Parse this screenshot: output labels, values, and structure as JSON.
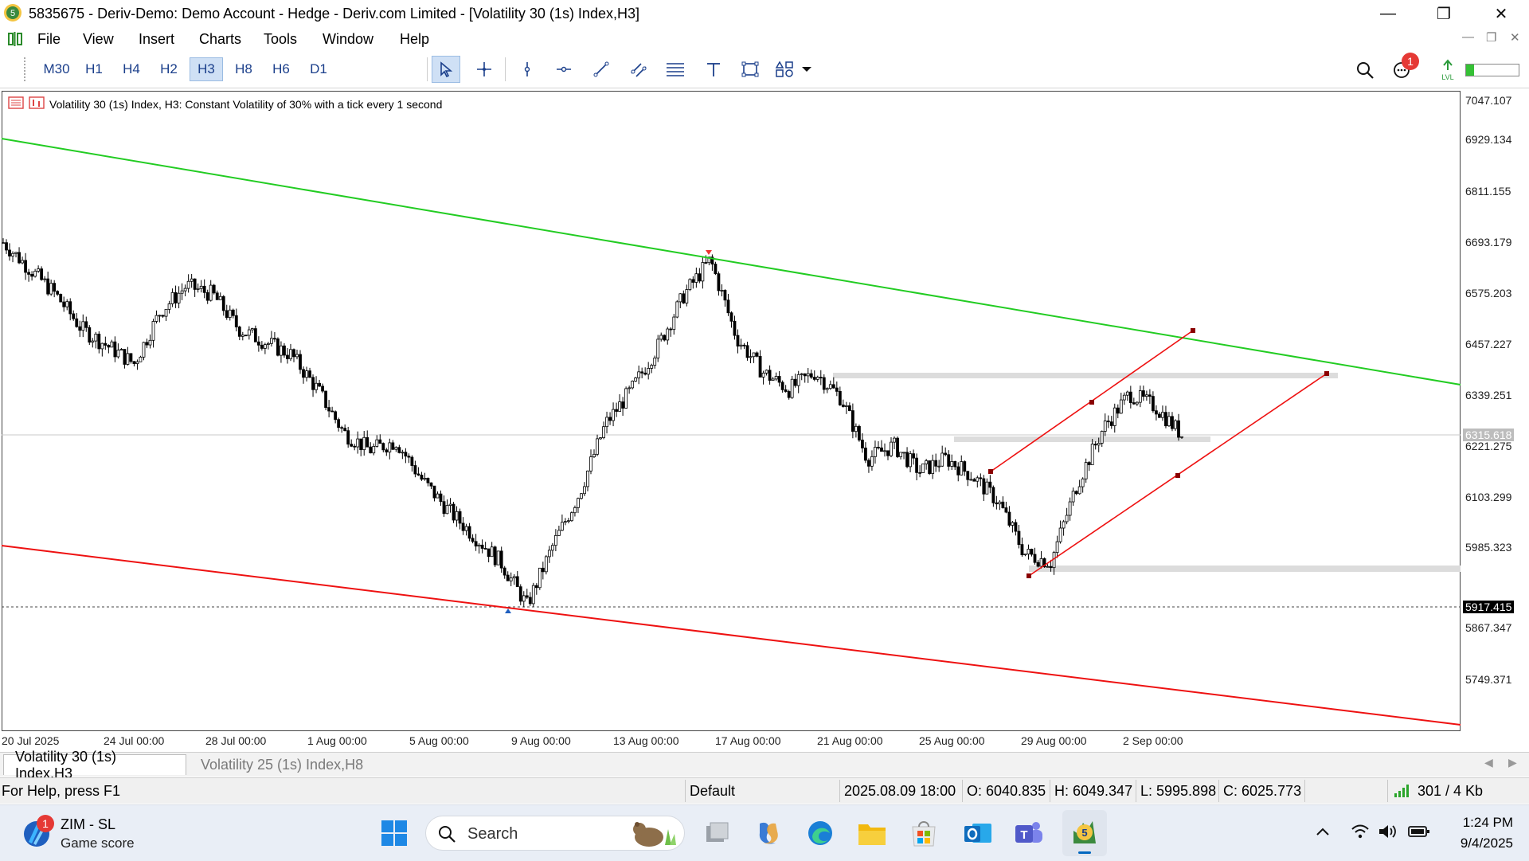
{
  "window": {
    "title": "5835675 - Deriv-Demo: Demo Account - Hedge - Deriv.com Limited - [Volatility 30 (1s) Index,H3]",
    "app_icon": "mt5-icon"
  },
  "menu": {
    "items": [
      "File",
      "View",
      "Insert",
      "Charts",
      "Tools",
      "Window",
      "Help"
    ]
  },
  "toolbar": {
    "timeframes": [
      "M30",
      "H1",
      "H4",
      "H2",
      "H3",
      "H8",
      "H6",
      "D1"
    ],
    "active_timeframe": "H3",
    "tools": [
      "cursor-icon",
      "crosshair-icon",
      "vertical-line-icon",
      "horizontal-line-icon",
      "trend-line-icon",
      "channel-icon",
      "fibonacci-icon",
      "text-icon",
      "shapes-icon",
      "objects-icon"
    ],
    "notification_count": "1"
  },
  "chart": {
    "info": "Volatility 30 (1s) Index, H3:  Constant Volatility of 30% with a tick every 1 second",
    "price_levels": [
      "7047.107",
      "6929.134",
      "6811.155",
      "6693.179",
      "6575.203",
      "6457.227",
      "6339.251",
      "6221.275",
      "6103.299",
      "5985.323",
      "5867.347",
      "5749.371"
    ],
    "current_price": "6315.618",
    "marker_price": "5917.415",
    "dates": [
      "20 Jul 2025",
      "24 Jul 00:00",
      "28 Jul 00:00",
      "1 Aug 00:00",
      "5 Aug 00:00",
      "9 Aug 00:00",
      "13 Aug 00:00",
      "17 Aug 00:00",
      "21 Aug 00:00",
      "25 Aug 00:00",
      "29 Aug 00:00",
      "2 Sep 00:00"
    ],
    "colors": {
      "bull": "#000000",
      "green_line": "#22cc22",
      "red_line": "#ee1111",
      "zone": "#dcdcdc"
    }
  },
  "chart_data": {
    "type": "candlestick",
    "x": [
      "20 Jul 2025",
      "24 Jul 00:00",
      "28 Jul 00:00",
      "1 Aug 00:00",
      "5 Aug 00:00",
      "9 Aug 00:00",
      "13 Aug 00:00",
      "17 Aug 00:00",
      "21 Aug 00:00",
      "25 Aug 00:00",
      "29 Aug 00:00",
      "2 Sep 00:00"
    ],
    "close_path": [
      [
        "20 Jul 2025",
        6760
      ],
      [
        "21 Jul",
        6700
      ],
      [
        "22 Jul",
        6640
      ],
      [
        "23 Jul",
        6560
      ],
      [
        "24 Jul 00:00",
        6520
      ],
      [
        "25 Jul",
        6480
      ],
      [
        "26 Jul",
        6600
      ],
      [
        "27 Jul",
        6660
      ],
      [
        "28 Jul 00:00",
        6640
      ],
      [
        "29 Jul",
        6560
      ],
      [
        "30 Jul",
        6530
      ],
      [
        "31 Jul",
        6500
      ],
      [
        "1 Aug 00:00",
        6420
      ],
      [
        "2 Aug",
        6320
      ],
      [
        "3 Aug",
        6280
      ],
      [
        "4 Aug",
        6300
      ],
      [
        "5 Aug 00:00",
        6210
      ],
      [
        "6 Aug",
        6140
      ],
      [
        "7 Aug",
        6080
      ],
      [
        "8 Aug",
        6020
      ],
      [
        "9 Aug 00:00",
        5920
      ],
      [
        "10 Aug",
        6060
      ],
      [
        "11 Aug",
        6180
      ],
      [
        "12 Aug",
        6340
      ],
      [
        "13 Aug 00:00",
        6420
      ],
      [
        "14 Aug",
        6520
      ],
      [
        "15 Aug",
        6640
      ],
      [
        "16 Aug",
        6720
      ],
      [
        "17 Aug 00:00",
        6540
      ],
      [
        "18 Aug",
        6460
      ],
      [
        "19 Aug",
        6420
      ],
      [
        "20 Aug",
        6460
      ],
      [
        "21 Aug 00:00",
        6400
      ],
      [
        "22 Aug",
        6260
      ],
      [
        "23 Aug",
        6290
      ],
      [
        "24 Aug",
        6230
      ],
      [
        "25 Aug 00:00",
        6260
      ],
      [
        "26 Aug",
        6220
      ],
      [
        "27 Aug",
        6160
      ],
      [
        "28 Aug",
        6040
      ],
      [
        "29 Aug 00:00",
        6020
      ],
      [
        "30 Aug",
        6200
      ],
      [
        "31 Aug",
        6330
      ],
      [
        "1 Sep",
        6410
      ],
      [
        "2 Sep 00:00",
        6380
      ],
      [
        "3 Sep",
        6315
      ]
    ],
    "lines": [
      {
        "name": "green-trendline",
        "from": [
          "20 Jul 2025",
          6990
        ],
        "to": [
          "5 Sep",
          6460
        ]
      },
      {
        "name": "red-support-line",
        "from": [
          "20 Jul 2025",
          6060
        ],
        "to": [
          "5 Sep",
          5640
        ]
      }
    ],
    "current_price": 6315.618,
    "marker_price": 5917.415,
    "ylim": [
      5640,
      7100
    ]
  },
  "tabs": [
    {
      "label": "Volatility 30 (1s) Index,H3",
      "active": true
    },
    {
      "label": "Volatility 25 (1s) Index,H8",
      "active": false
    }
  ],
  "status": {
    "help": "For Help, press F1",
    "profile": "Default",
    "datetime": "2025.08.09 18:00",
    "open": "O: 6040.835",
    "high": "H: 6049.347",
    "low": "L: 5995.898",
    "close": "C: 6025.773",
    "traffic": "301 / 4 Kb"
  },
  "taskbar": {
    "widget_title": "ZIM - SL",
    "widget_sub": "Game score",
    "widget_badge": "1",
    "search_placeholder": "Search",
    "time": "1:24 PM",
    "date": "9/4/2025"
  }
}
